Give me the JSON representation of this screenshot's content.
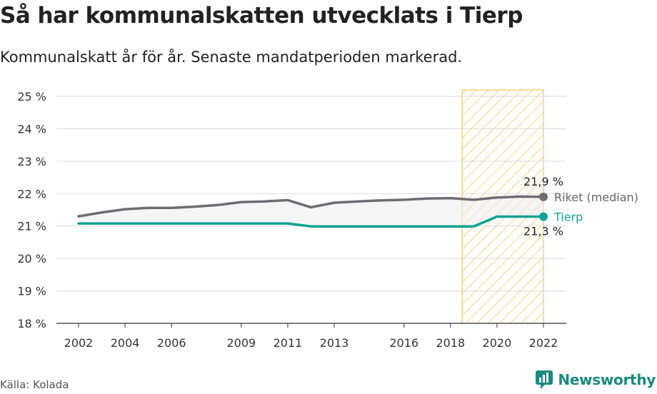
{
  "header": {
    "title": "Så har kommunalskatten utvecklats i Tierp",
    "subtitle": "Kommunalskatt år för år. Senaste mandatperioden markerad."
  },
  "footer": {
    "source": "Källa: Kolada",
    "brand": "Newsworthy"
  },
  "colors": {
    "riket": "#6e6b73",
    "tierp": "#0fa394",
    "highlight": "#f8c65a"
  },
  "chart_data": {
    "type": "line",
    "ylim": [
      18,
      25
    ],
    "yticks": [
      18,
      19,
      20,
      21,
      22,
      23,
      24,
      25
    ],
    "ytick_labels": [
      "18 %",
      "19 %",
      "20 %",
      "21 %",
      "22 %",
      "23 %",
      "24 %",
      "25 %"
    ],
    "xlim": [
      2002,
      2022
    ],
    "xticks": [
      2002,
      2004,
      2006,
      2009,
      2011,
      2013,
      2016,
      2018,
      2020,
      2022
    ],
    "xtick_labels": [
      "2002",
      "2004",
      "2006",
      "2009",
      "2011",
      "2013",
      "2016",
      "2018",
      "2020",
      "2022"
    ],
    "highlight_period": [
      2018.5,
      2022
    ],
    "grid": true,
    "series": [
      {
        "name": "Riket (median)",
        "x": [
          2002,
          2003,
          2004,
          2005,
          2006,
          2007,
          2008,
          2009,
          2010,
          2011,
          2012,
          2013,
          2014,
          2015,
          2016,
          2017,
          2018,
          2019,
          2020,
          2021,
          2022
        ],
        "values": [
          21.3,
          21.42,
          21.52,
          21.56,
          21.56,
          21.6,
          21.65,
          21.74,
          21.76,
          21.8,
          21.58,
          21.72,
          21.76,
          21.79,
          21.81,
          21.85,
          21.86,
          21.81,
          21.88,
          21.91,
          21.9
        ],
        "end_label": "21,9 %"
      },
      {
        "name": "Tierp",
        "x": [
          2002,
          2003,
          2004,
          2005,
          2006,
          2007,
          2008,
          2009,
          2010,
          2011,
          2012,
          2013,
          2014,
          2015,
          2016,
          2017,
          2018,
          2019,
          2020,
          2021,
          2022
        ],
        "values": [
          21.08,
          21.08,
          21.08,
          21.08,
          21.08,
          21.08,
          21.08,
          21.08,
          21.08,
          21.08,
          20.99,
          20.99,
          20.99,
          20.99,
          20.99,
          20.99,
          20.99,
          20.99,
          21.29,
          21.29,
          21.29
        ],
        "end_label": "21,3 %"
      }
    ]
  }
}
